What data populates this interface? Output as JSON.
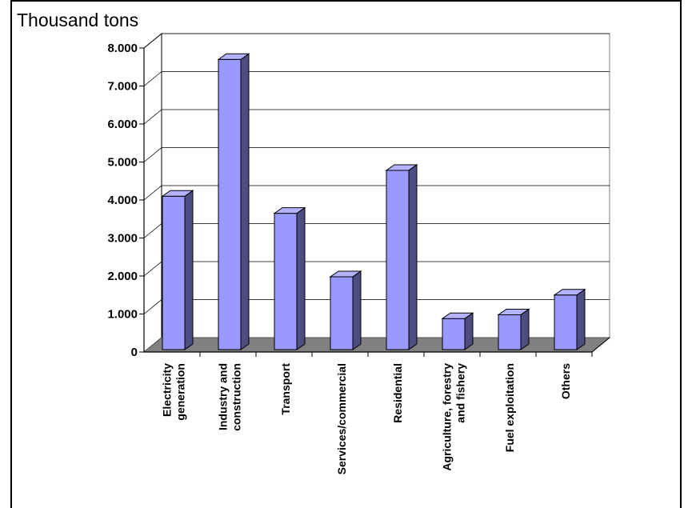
{
  "chart_data": {
    "type": "bar",
    "title": "",
    "ylabel": "Thousand tons",
    "xlabel": "",
    "categories": [
      [
        "Electricity",
        "generation"
      ],
      [
        "Industry and",
        "construction"
      ],
      [
        "Transport"
      ],
      [
        "Services/commercial"
      ],
      [
        "Residential"
      ],
      [
        "Agriculture, forestry",
        "and fishery"
      ],
      [
        "Fuel exploitation"
      ],
      [
        "Others"
      ]
    ],
    "values": [
      4100,
      7700,
      3650,
      1980,
      4780,
      880,
      980,
      1500
    ],
    "ylim": [
      0,
      8000
    ],
    "yticks": [
      "0",
      "1.000",
      "2.000",
      "3.000",
      "4.000",
      "5.000",
      "6.000",
      "7.000",
      "8.000"
    ],
    "grid": true,
    "legend": "none",
    "bar_color": "#9999ff",
    "bar_side_color": "#4d4d80",
    "bar_top_color": "#b3b3ff",
    "floor_color": "#808080"
  }
}
